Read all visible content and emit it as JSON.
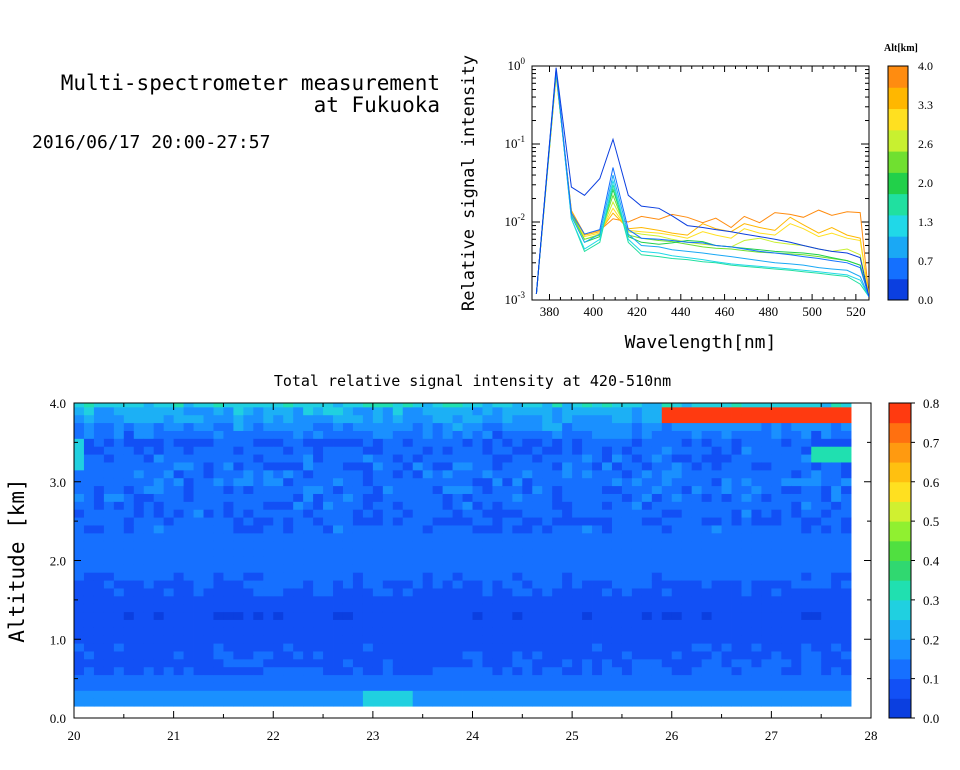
{
  "header": {
    "title_line1": "Multi-spectrometer measurement",
    "title_line2": "at Fukuoka",
    "period": "2016/06/17 20:00-27:57"
  },
  "colors": {
    "spectrum_colorbar": [
      "#0b3fe0",
      "#1470ff",
      "#1aa8f5",
      "#20d8e8",
      "#20e0a0",
      "#22d04a",
      "#70e030",
      "#c8f030",
      "#ffe020",
      "#ffb700",
      "#ff8c10"
    ],
    "heatmap_colorbar": [
      "#0b3fe0",
      "#1250f5",
      "#1670ff",
      "#1a90ff",
      "#1cb0f5",
      "#20d0e0",
      "#20e0b0",
      "#30d870",
      "#50e040",
      "#90f030",
      "#d0f030",
      "#ffe020",
      "#ffc010",
      "#ff9a10",
      "#ff7010",
      "#ff3a10"
    ]
  },
  "chart_data": [
    {
      "type": "line",
      "title": "",
      "xlabel": "Wavelength[nm]",
      "ylabel": "Relative signal intensity",
      "x_scale": "linear",
      "y_scale": "log",
      "xlim": [
        372,
        526
      ],
      "ylim": [
        0.001,
        1
      ],
      "xticks": [
        "380",
        "400",
        "420",
        "440",
        "460",
        "480",
        "500",
        "520"
      ],
      "yticks": [
        "10^-3",
        "10^-2",
        "10^-1",
        "10^0"
      ],
      "x": [
        374,
        383,
        390,
        396,
        403,
        409,
        416,
        422,
        430,
        436,
        443,
        450,
        456,
        463,
        469,
        476,
        483,
        490,
        496,
        503,
        509,
        516,
        522,
        526
      ],
      "colorbar": {
        "label": "Alt[km]",
        "ticks": [
          "0.0",
          "0.7",
          "1.3",
          "2.0",
          "2.6",
          "3.3",
          "4.0"
        ],
        "range": [
          0,
          4
        ]
      },
      "series": [
        {
          "alt": 0.0,
          "values": [
            0.0012,
            0.95,
            0.028,
            0.022,
            0.036,
            0.115,
            0.022,
            0.016,
            0.015,
            0.012,
            0.009,
            0.0085,
            0.008,
            0.0075,
            0.007,
            0.0065,
            0.006,
            0.0055,
            0.005,
            0.0045,
            0.0042,
            0.004,
            0.0035,
            0.0011
          ]
        },
        {
          "alt": 0.4,
          "values": [
            0.0012,
            0.9,
            0.013,
            0.007,
            0.008,
            0.05,
            0.008,
            0.0062,
            0.006,
            0.0058,
            0.0055,
            0.0054,
            0.005,
            0.0048,
            0.0045,
            0.0042,
            0.004,
            0.0038,
            0.0036,
            0.0034,
            0.0032,
            0.003,
            0.0026,
            0.0011
          ]
        },
        {
          "alt": 0.8,
          "values": [
            0.0012,
            0.88,
            0.012,
            0.0055,
            0.007,
            0.04,
            0.007,
            0.005,
            0.0048,
            0.0044,
            0.0042,
            0.004,
            0.0038,
            0.0036,
            0.0034,
            0.0032,
            0.003,
            0.0029,
            0.0028,
            0.0026,
            0.0025,
            0.0024,
            0.002,
            0.0011
          ]
        },
        {
          "alt": 1.2,
          "values": [
            0.0012,
            0.86,
            0.011,
            0.0045,
            0.006,
            0.034,
            0.006,
            0.0042,
            0.004,
            0.0037,
            0.0035,
            0.0033,
            0.0031,
            0.0029,
            0.0028,
            0.0027,
            0.0026,
            0.0025,
            0.0024,
            0.0023,
            0.0022,
            0.0021,
            0.0018,
            0.0011
          ]
        },
        {
          "alt": 1.6,
          "values": [
            0.0012,
            0.84,
            0.011,
            0.0042,
            0.0055,
            0.03,
            0.0055,
            0.0038,
            0.0036,
            0.0034,
            0.0033,
            0.0031,
            0.003,
            0.0028,
            0.0027,
            0.0026,
            0.0025,
            0.0024,
            0.0023,
            0.0022,
            0.0021,
            0.002,
            0.0016,
            0.0011
          ]
        },
        {
          "alt": 2.0,
          "values": [
            0.0012,
            0.83,
            0.012,
            0.0055,
            0.0065,
            0.026,
            0.0065,
            0.0055,
            0.0052,
            0.0054,
            0.0058,
            0.0056,
            0.005,
            0.0048,
            0.0046,
            0.0044,
            0.0042,
            0.0041,
            0.004,
            0.0038,
            0.0035,
            0.0032,
            0.0028,
            0.0011
          ]
        },
        {
          "alt": 2.4,
          "values": [
            0.0012,
            0.82,
            0.013,
            0.006,
            0.0068,
            0.022,
            0.0068,
            0.0062,
            0.0058,
            0.0056,
            0.0052,
            0.0048,
            0.0046,
            0.0045,
            0.0043,
            0.0041,
            0.004,
            0.0039,
            0.0038,
            0.0036,
            0.0034,
            0.0032,
            0.0028,
            0.0011
          ]
        },
        {
          "alt": 2.8,
          "values": [
            0.0012,
            0.8,
            0.012,
            0.006,
            0.007,
            0.018,
            0.0075,
            0.007,
            0.0066,
            0.006,
            0.0055,
            0.0052,
            0.005,
            0.0048,
            0.0058,
            0.0062,
            0.0055,
            0.0052,
            0.005,
            0.0045,
            0.0042,
            0.0045,
            0.0038,
            0.0011
          ]
        },
        {
          "alt": 3.2,
          "values": [
            0.0012,
            0.78,
            0.013,
            0.0065,
            0.0072,
            0.015,
            0.0078,
            0.0075,
            0.0072,
            0.0068,
            0.0062,
            0.0075,
            0.0068,
            0.0062,
            0.0082,
            0.0072,
            0.0068,
            0.0095,
            0.0082,
            0.0065,
            0.0072,
            0.0062,
            0.0058,
            0.0011
          ]
        },
        {
          "alt": 3.6,
          "values": [
            0.0012,
            0.76,
            0.014,
            0.0068,
            0.0075,
            0.013,
            0.0082,
            0.0085,
            0.0078,
            0.0072,
            0.0068,
            0.0095,
            0.0082,
            0.0075,
            0.0095,
            0.0085,
            0.0078,
            0.0115,
            0.0092,
            0.0072,
            0.0085,
            0.0068,
            0.0062,
            0.0011
          ]
        },
        {
          "alt": 4.0,
          "values": [
            0.0012,
            0.75,
            0.014,
            0.007,
            0.0078,
            0.011,
            0.01,
            0.0118,
            0.0108,
            0.0125,
            0.0115,
            0.0098,
            0.0112,
            0.0085,
            0.0118,
            0.0098,
            0.0132,
            0.0125,
            0.0115,
            0.0142,
            0.0122,
            0.0135,
            0.0132,
            0.0011
          ]
        }
      ]
    },
    {
      "type": "heatmap",
      "title": "Total relative signal intensity at 420-510nm",
      "xlabel": "",
      "ylabel": "Altitude [km]",
      "xlim": [
        20,
        28
      ],
      "ylim": [
        0,
        4
      ],
      "xticks": [
        "20",
        "21",
        "22",
        "23",
        "24",
        "25",
        "26",
        "27",
        "28"
      ],
      "yticks": [
        "0.0",
        "1.0",
        "2.0",
        "3.0",
        "4.0"
      ],
      "data_x_end": 27.8,
      "data_alt_start": 0.15,
      "colorbar": {
        "ticks": [
          "0.0",
          "0.1",
          "0.2",
          "0.3",
          "0.4",
          "0.5",
          "0.6",
          "0.7",
          "0.8"
        ],
        "range": [
          0,
          0.8
        ]
      },
      "altitude_profile": [
        {
          "alt": 0.15,
          "value": 0.17
        },
        {
          "alt": 0.25,
          "value": 0.19
        },
        {
          "alt": 0.35,
          "value": 0.14
        },
        {
          "alt": 0.6,
          "value": 0.1
        },
        {
          "alt": 0.9,
          "value": 0.09
        },
        {
          "alt": 1.3,
          "value": 0.06
        },
        {
          "alt": 1.7,
          "value": 0.1
        },
        {
          "alt": 2.0,
          "value": 0.13
        },
        {
          "alt": 2.5,
          "value": 0.11
        },
        {
          "alt": 3.0,
          "value": 0.13
        },
        {
          "alt": 3.5,
          "value": 0.11
        },
        {
          "alt": 3.9,
          "value": 0.22
        },
        {
          "alt": 4.0,
          "value": 0.28
        }
      ],
      "features": [
        {
          "time_start": 25.9,
          "time_end": 27.8,
          "alt_start": 3.75,
          "alt_end": 4.0,
          "value": 0.75
        },
        {
          "time_start": 27.4,
          "time_end": 27.8,
          "alt_start": 3.3,
          "alt_end": 3.5,
          "value": 0.35
        },
        {
          "time_start": 22.9,
          "time_end": 23.4,
          "alt_start": 0.15,
          "alt_end": 0.35,
          "value": 0.3
        },
        {
          "time_start": 20.0,
          "time_end": 20.1,
          "alt_start": 3.2,
          "alt_end": 3.6,
          "value": 0.3
        }
      ]
    }
  ]
}
